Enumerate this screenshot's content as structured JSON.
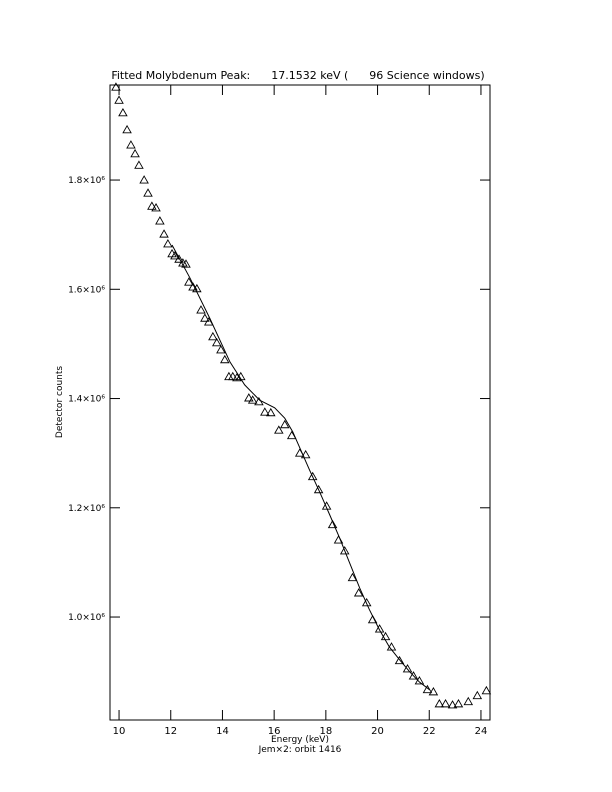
{
  "chart_data": {
    "type": "scatter",
    "title": "Fitted Molybdenum Peak:      17.1532 keV (      96 Science windows)",
    "x_label": "Energy (keV)",
    "subtitle": "Jem×2: orbit 1416",
    "y_label": "Detector counts",
    "xlim": [
      9.65,
      24.35
    ],
    "ylim": [
      811500,
      1974000
    ],
    "xticks": [
      10,
      12,
      14,
      16,
      18,
      20,
      22,
      24
    ],
    "yticks": [
      {
        "value": 1000000,
        "label": "1.0×10⁶"
      },
      {
        "value": 1200000,
        "label": "1.2×10⁶"
      },
      {
        "value": 1400000,
        "label": "1.4×10⁶"
      },
      {
        "value": 1600000,
        "label": "1.6×10⁶"
      },
      {
        "value": 1800000,
        "label": "1.8×10⁶"
      }
    ],
    "series": [
      {
        "marker": "triangle",
        "color": "#000000",
        "x": [
          9.88,
          10.0,
          10.15,
          10.31,
          10.46,
          10.62,
          10.77,
          10.97,
          11.12,
          11.27,
          11.43,
          11.58,
          11.74,
          11.89,
          12.05,
          12.16,
          12.32,
          12.47,
          12.59,
          12.7,
          12.86,
          13.01,
          13.17,
          13.32,
          13.47,
          13.63,
          13.78,
          13.94,
          14.09,
          14.25,
          14.4,
          14.56,
          14.71,
          15.02,
          15.17,
          15.41,
          15.64,
          15.87,
          16.18,
          16.41,
          16.68,
          16.99,
          17.22,
          17.49,
          17.72,
          18.03,
          18.26,
          18.49,
          18.73,
          19.03,
          19.27,
          19.58,
          19.81,
          20.08,
          20.31,
          20.54,
          20.85,
          21.16,
          21.39,
          21.62,
          21.93,
          22.16,
          22.39,
          22.63,
          22.9,
          23.13,
          23.51,
          23.86,
          24.21
        ],
        "values": [
          1970000,
          1946000,
          1923000,
          1892000,
          1864000,
          1848000,
          1827000,
          1800000,
          1776000,
          1752000,
          1749000,
          1725000,
          1701000,
          1683000,
          1665000,
          1661000,
          1655000,
          1648000,
          1646000,
          1613000,
          1604000,
          1601000,
          1562000,
          1547000,
          1540000,
          1513000,
          1502000,
          1489000,
          1471000,
          1440000,
          1440000,
          1438000,
          1440000,
          1401000,
          1397000,
          1394000,
          1375000,
          1374000,
          1342000,
          1352000,
          1332000,
          1300000,
          1297000,
          1257000,
          1233000,
          1203000,
          1169000,
          1141000,
          1121000,
          1072000,
          1044000,
          1026000,
          995000,
          978000,
          964000,
          945000,
          920000,
          905000,
          892000,
          883000,
          867000,
          863000,
          841000,
          841000,
          839000,
          841000,
          845000,
          856000,
          865000
        ]
      },
      {
        "marker": "line",
        "color": "#000000",
        "x": [
          12.05,
          12.74,
          13.51,
          14.29,
          14.86,
          15.44,
          16.02,
          16.41,
          16.72,
          16.99,
          17.37,
          17.76,
          18.15,
          18.53,
          18.92,
          19.31,
          19.69,
          20.08,
          20.46,
          20.85,
          21.24,
          21.62,
          22.01
        ],
        "values": [
          1681000,
          1621000,
          1547000,
          1467000,
          1425000,
          1397000,
          1383000,
          1364000,
          1339000,
          1310000,
          1269000,
          1229000,
          1187000,
          1145000,
          1099000,
          1053000,
          1013000,
          976000,
          945000,
          922000,
          900000,
          881000,
          867000
        ]
      }
    ]
  }
}
